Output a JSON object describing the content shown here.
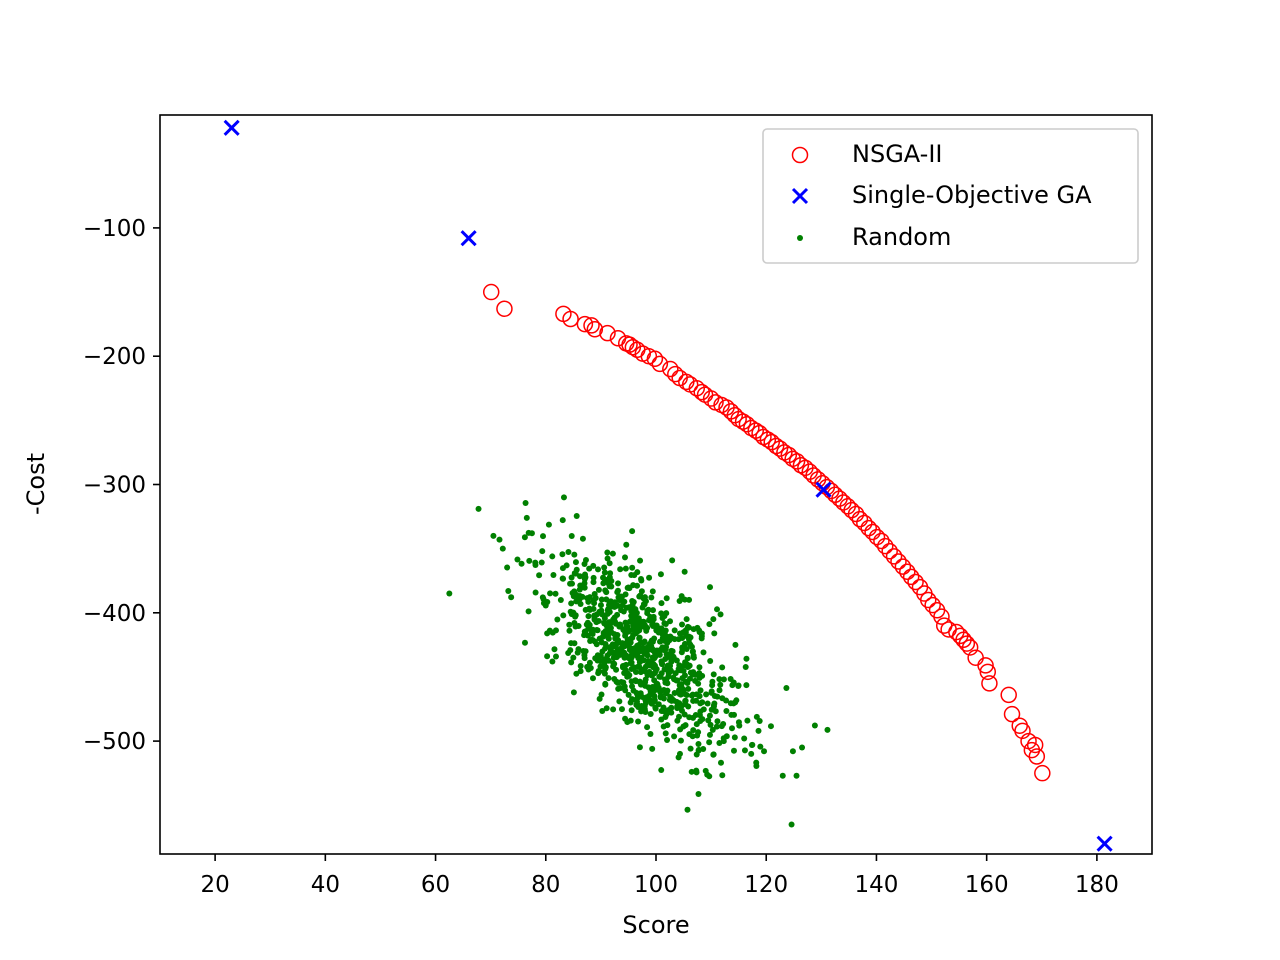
{
  "chart_data": {
    "type": "scatter",
    "xlabel": "Score",
    "ylabel": "-Cost",
    "xlim": [
      10,
      190
    ],
    "ylim": [
      -588,
      -12
    ],
    "xticks": [
      20,
      40,
      60,
      80,
      100,
      120,
      140,
      160,
      180
    ],
    "yticks": [
      -100,
      -200,
      -300,
      -400,
      -500
    ],
    "ytick_labels": [
      "−100",
      "−200",
      "−300",
      "−400",
      "−500"
    ],
    "grid": false,
    "legend_position": "upper right",
    "series": [
      {
        "name": "NSGA-II",
        "marker": "open-circle",
        "color": "#ff0000",
        "points": [
          [
            70.1,
            -150
          ],
          [
            72.5,
            -163
          ],
          [
            83.2,
            -167
          ],
          [
            84.5,
            -171
          ],
          [
            87.1,
            -175
          ],
          [
            88.3,
            -176
          ],
          [
            88.9,
            -179
          ],
          [
            91.2,
            -182
          ],
          [
            93.1,
            -186
          ],
          [
            94.6,
            -190
          ],
          [
            95.2,
            -191
          ],
          [
            95.8,
            -193
          ],
          [
            96.6,
            -195
          ],
          [
            97.6,
            -198
          ],
          [
            98.7,
            -200
          ],
          [
            99.8,
            -202
          ],
          [
            100.7,
            -206
          ],
          [
            102.6,
            -210
          ],
          [
            103.5,
            -214
          ],
          [
            104.3,
            -217
          ],
          [
            105.5,
            -220
          ],
          [
            106.2,
            -222
          ],
          [
            107.4,
            -225
          ],
          [
            108.3,
            -228
          ],
          [
            108.9,
            -230
          ],
          [
            110.0,
            -233
          ],
          [
            110.8,
            -236
          ],
          [
            111.9,
            -238
          ],
          [
            112.8,
            -240
          ],
          [
            113.6,
            -243
          ],
          [
            114.3,
            -246
          ],
          [
            115.0,
            -249
          ],
          [
            115.8,
            -251
          ],
          [
            116.5,
            -253
          ],
          [
            117.3,
            -256
          ],
          [
            118.1,
            -258
          ],
          [
            118.8,
            -260
          ],
          [
            119.5,
            -263
          ],
          [
            120.3,
            -265
          ],
          [
            121.0,
            -267
          ],
          [
            121.8,
            -270
          ],
          [
            122.5,
            -272
          ],
          [
            123.3,
            -275
          ],
          [
            124.1,
            -277
          ],
          [
            124.8,
            -280
          ],
          [
            125.6,
            -282
          ],
          [
            126.3,
            -285
          ],
          [
            127.1,
            -287
          ],
          [
            127.9,
            -290
          ],
          [
            128.6,
            -293
          ],
          [
            129.4,
            -296
          ],
          [
            130.2,
            -299
          ],
          [
            131.0,
            -302
          ],
          [
            131.8,
            -305
          ],
          [
            132.5,
            -308
          ],
          [
            133.3,
            -311
          ],
          [
            134.0,
            -314
          ],
          [
            134.8,
            -317
          ],
          [
            135.5,
            -320
          ],
          [
            136.3,
            -323
          ],
          [
            137.0,
            -327
          ],
          [
            137.8,
            -330
          ],
          [
            138.6,
            -334
          ],
          [
            139.3,
            -337
          ],
          [
            140.1,
            -341
          ],
          [
            140.9,
            -344
          ],
          [
            141.6,
            -348
          ],
          [
            142.4,
            -352
          ],
          [
            143.2,
            -356
          ],
          [
            144.0,
            -360
          ],
          [
            144.8,
            -364
          ],
          [
            145.6,
            -368
          ],
          [
            146.3,
            -372
          ],
          [
            147.1,
            -376
          ],
          [
            147.9,
            -380
          ],
          [
            148.7,
            -385
          ],
          [
            149.4,
            -390
          ],
          [
            150.2,
            -394
          ],
          [
            151.0,
            -398
          ],
          [
            151.8,
            -403
          ],
          [
            152.3,
            -410
          ],
          [
            153.1,
            -413
          ],
          [
            154.5,
            -415
          ],
          [
            155.2,
            -418
          ],
          [
            155.8,
            -421
          ],
          [
            156.4,
            -424
          ],
          [
            157.0,
            -427
          ],
          [
            158.0,
            -435
          ],
          [
            159.8,
            -441
          ],
          [
            160.2,
            -446
          ],
          [
            160.5,
            -455
          ],
          [
            164.0,
            -464
          ],
          [
            164.6,
            -479
          ],
          [
            166.0,
            -488
          ],
          [
            166.5,
            -492
          ],
          [
            167.6,
            -500
          ],
          [
            168.2,
            -507
          ],
          [
            168.8,
            -503
          ],
          [
            169.1,
            -512
          ],
          [
            170.1,
            -525
          ]
        ]
      },
      {
        "name": "Single-Objective GA",
        "marker": "x",
        "color": "#0000ff",
        "points": [
          [
            23,
            -22
          ],
          [
            66,
            -108
          ],
          [
            130.4,
            -304
          ],
          [
            181.4,
            -580
          ]
        ]
      },
      {
        "name": "Random",
        "marker": "dot",
        "color": "#008000",
        "cluster": {
          "count": 900,
          "seed": 42,
          "mean": [
            97.4,
            -430
          ],
          "score_sd": 9,
          "cost_sd": 40,
          "correlation": -0.65
        },
        "points": [
          [
            62.5,
            -385
          ],
          [
            67.8,
            -319
          ],
          [
            83.3,
            -310
          ],
          [
            124.6,
            -565
          ],
          [
            71.6,
            -343
          ],
          [
            72.2,
            -350
          ],
          [
            70.5,
            -340
          ],
          [
            73.2,
            -383
          ],
          [
            81.2,
            -438
          ],
          [
            85.1,
            -462
          ],
          [
            109.8,
            -380
          ],
          [
            105.2,
            -368
          ],
          [
            118.6,
            -492
          ],
          [
            123.0,
            -527
          ],
          [
            125.5,
            -527
          ],
          [
            126.5,
            -505
          ],
          [
            116.0,
            -498
          ],
          [
            112.3,
            -500
          ],
          [
            107.3,
            -523
          ]
        ]
      }
    ]
  }
}
